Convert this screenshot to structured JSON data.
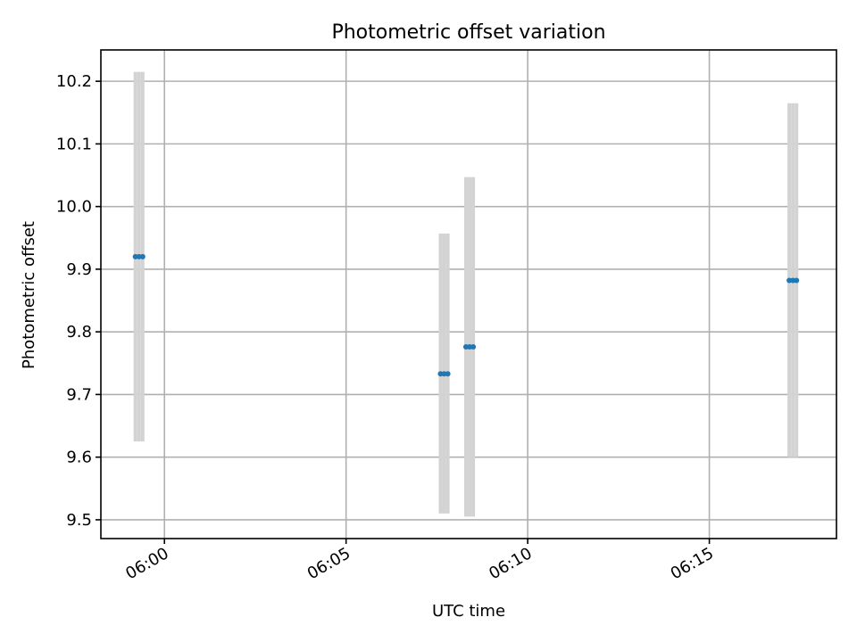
{
  "chart_data": {
    "type": "scatter",
    "title": "Photometric offset variation",
    "xlabel": "UTC time",
    "ylabel": "Photometric offset",
    "xlim": [
      "05:58:15",
      "06:18:30"
    ],
    "ylim": [
      9.47,
      10.25
    ],
    "x_ticks": [
      "06:00",
      "06:05",
      "06:10",
      "06:15"
    ],
    "y_ticks": [
      "9.5",
      "9.6",
      "9.7",
      "9.8",
      "9.9",
      "10.0",
      "10.1",
      "10.2"
    ],
    "grid": true,
    "colors": {
      "point": "#1f77b4",
      "errorbar": "#d3d3d3"
    },
    "points": [
      {
        "x": "05:59:12",
        "y": 9.92,
        "ymin": 9.625,
        "ymax": 10.215
      },
      {
        "x": "05:59:18",
        "y": 9.92,
        "ymin": 9.625,
        "ymax": 10.215
      },
      {
        "x": "05:59:24",
        "y": 9.92,
        "ymin": 9.625,
        "ymax": 10.215
      },
      {
        "x": "06:07:36",
        "y": 9.733,
        "ymin": 9.51,
        "ymax": 9.957
      },
      {
        "x": "06:07:42",
        "y": 9.733,
        "ymin": 9.51,
        "ymax": 9.957
      },
      {
        "x": "06:07:48",
        "y": 9.733,
        "ymin": 9.51,
        "ymax": 9.957
      },
      {
        "x": "06:08:18",
        "y": 9.776,
        "ymin": 9.505,
        "ymax": 10.047
      },
      {
        "x": "06:08:24",
        "y": 9.776,
        "ymin": 9.505,
        "ymax": 10.047
      },
      {
        "x": "06:08:30",
        "y": 9.776,
        "ymin": 9.505,
        "ymax": 10.047
      },
      {
        "x": "06:17:12",
        "y": 9.882,
        "ymin": 9.6,
        "ymax": 10.165
      },
      {
        "x": "06:17:18",
        "y": 9.882,
        "ymin": 9.6,
        "ymax": 10.165
      },
      {
        "x": "06:17:24",
        "y": 9.882,
        "ymin": 9.6,
        "ymax": 10.165
      }
    ]
  }
}
